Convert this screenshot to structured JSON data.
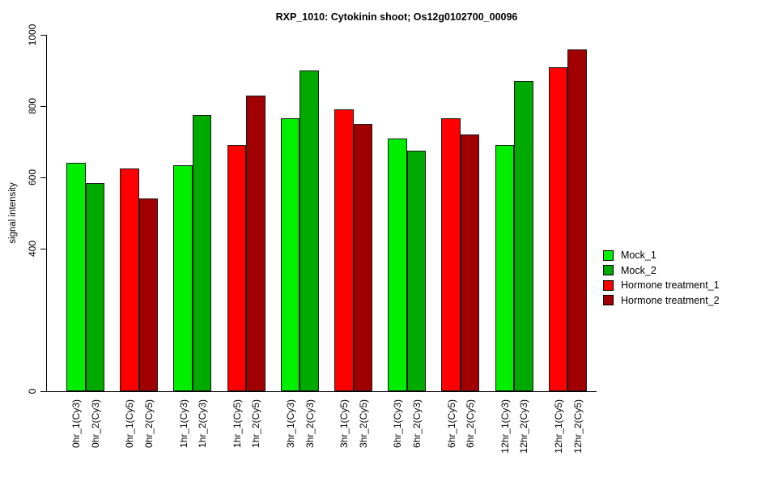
{
  "title": "RXP_1010: Cytokinin shoot; Os12g0102700_00096",
  "chart_data": {
    "type": "bar",
    "title": "RXP_1010: Cytokinin shoot; Os12g0102700_00096",
    "xlabel": "",
    "ylabel": "signal intensity",
    "ylim": [
      0,
      1000
    ],
    "yticks": [
      0,
      400,
      600,
      800,
      1000
    ],
    "grid": false,
    "legend_position": "right",
    "categories": [
      "0hr_1(Cy3)",
      "0hr_2(Cy3)",
      "0hr_1(Cy5)",
      "0hr_2(Cy5)",
      "1hr_1(Cy3)",
      "1hr_2(Cy3)",
      "1hr_1(Cy5)",
      "1hr_2(Cy5)",
      "3hr_1(Cy3)",
      "3hr_2(Cy3)",
      "3hr_1(Cy5)",
      "3hr_2(Cy5)",
      "6hr_1(Cy3)",
      "6hr_2(Cy3)",
      "6hr_1(Cy5)",
      "6hr_2(Cy5)",
      "12hr_1(Cy3)",
      "12hr_2(Cy3)",
      "12hr_1(Cy5)",
      "12hr_2(Cy5)"
    ],
    "values": [
      640,
      585,
      625,
      540,
      635,
      775,
      690,
      830,
      765,
      900,
      790,
      750,
      710,
      675,
      765,
      720,
      690,
      870,
      910,
      960
    ],
    "series_index": [
      0,
      1,
      2,
      3,
      0,
      1,
      2,
      3,
      0,
      1,
      2,
      3,
      0,
      1,
      2,
      3,
      0,
      1,
      2,
      3
    ],
    "legend": [
      {
        "label": "Mock_1",
        "color": "#00EE00"
      },
      {
        "label": "Mock_2",
        "color": "#00AA00"
      },
      {
        "label": "Hormone treatment_1",
        "color": "#FF0000"
      },
      {
        "label": "Hormone treatment_2",
        "color": "#A00000"
      }
    ]
  }
}
